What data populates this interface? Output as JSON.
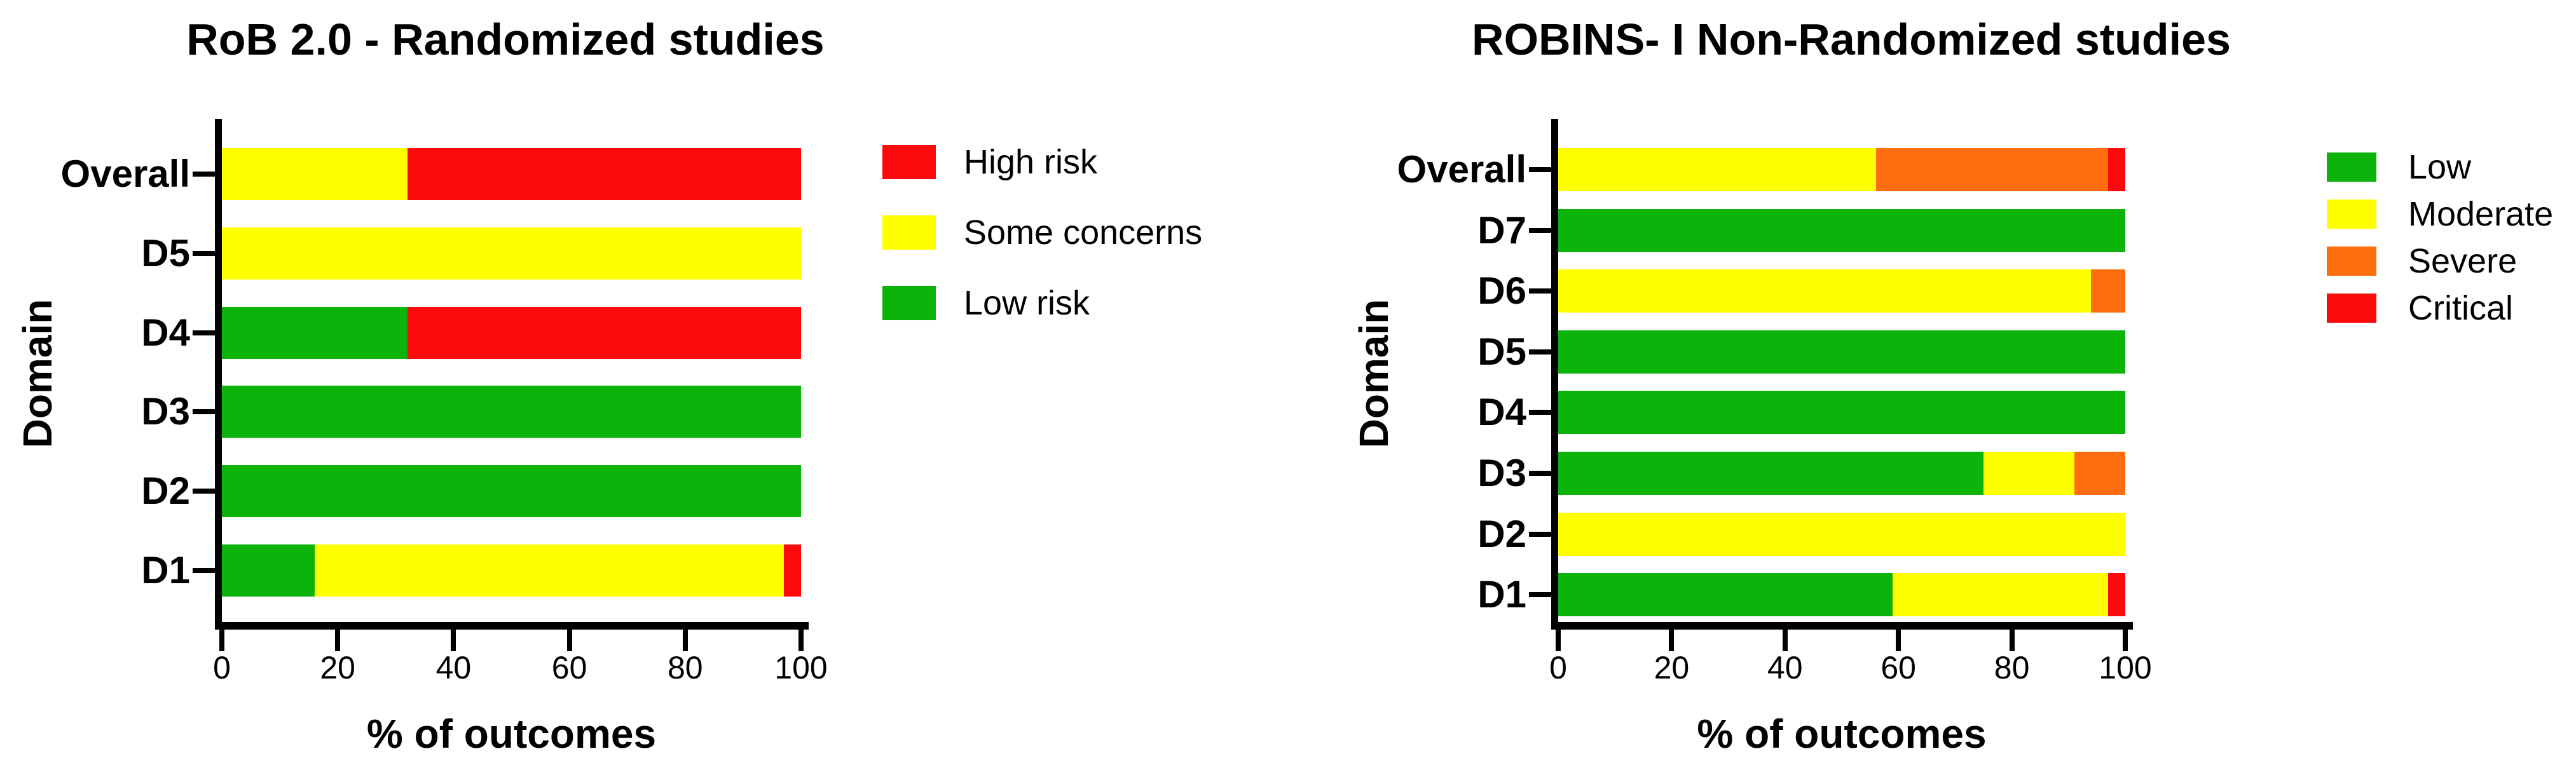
{
  "chart_data": [
    {
      "type": "bar",
      "orientation": "horizontal_stacked",
      "title": "RoB 2.0 - Randomized studies",
      "xlabel": "% of outcomes",
      "ylabel": "Domain",
      "xlim": [
        0,
        100
      ],
      "xticks": [
        "0",
        "20",
        "40",
        "60",
        "80",
        "100"
      ],
      "categories": [
        "Overall",
        "D5",
        "D4",
        "D3",
        "D2",
        "D1"
      ],
      "series": [
        {
          "name": "Low risk",
          "color": "#0BB30B",
          "values": [
            0,
            0,
            32,
            100,
            100,
            16
          ]
        },
        {
          "name": "Some concerns",
          "color": "#FFFF00",
          "values": [
            32,
            100,
            0,
            0,
            0,
            81
          ]
        },
        {
          "name": "High risk",
          "color": "#FA0A0A",
          "values": [
            68,
            0,
            68,
            0,
            0,
            3
          ]
        }
      ],
      "legend": [
        {
          "label": "High risk",
          "color": "#FA0A0A"
        },
        {
          "label": "Some concerns",
          "color": "#FFFF00"
        },
        {
          "label": "Low risk",
          "color": "#0BB30B"
        }
      ],
      "legend_position": "right",
      "grid": false
    },
    {
      "type": "bar",
      "orientation": "horizontal_stacked",
      "title": "ROBINS- I Non-Randomized studies",
      "xlabel": "% of outcomes",
      "ylabel": "Domain",
      "xlim": [
        0,
        100
      ],
      "xticks": [
        "0",
        "20",
        "40",
        "60",
        "80",
        "100"
      ],
      "categories": [
        "Overall",
        "D7",
        "D6",
        "D5",
        "D4",
        "D3",
        "D2",
        "D1"
      ],
      "series": [
        {
          "name": "Low",
          "color": "#0BB30B",
          "values": [
            0,
            100,
            0,
            100,
            100,
            75,
            0,
            59
          ]
        },
        {
          "name": "Moderate",
          "color": "#FFFF00",
          "values": [
            56,
            0,
            94,
            0,
            0,
            16,
            100,
            38
          ]
        },
        {
          "name": "Severe",
          "color": "#FF6E0E",
          "values": [
            41,
            0,
            6,
            0,
            0,
            9,
            0,
            0
          ]
        },
        {
          "name": "Critical",
          "color": "#FA0A0A",
          "values": [
            3,
            0,
            0,
            0,
            0,
            0,
            0,
            3
          ]
        }
      ],
      "legend": [
        {
          "label": "Low",
          "color": "#0BB30B"
        },
        {
          "label": "Moderate",
          "color": "#FFFF00"
        },
        {
          "label": "Severe",
          "color": "#FF6E0E"
        },
        {
          "label": "Critical",
          "color": "#FA0A0A"
        }
      ],
      "legend_position": "right",
      "grid": false
    }
  ]
}
